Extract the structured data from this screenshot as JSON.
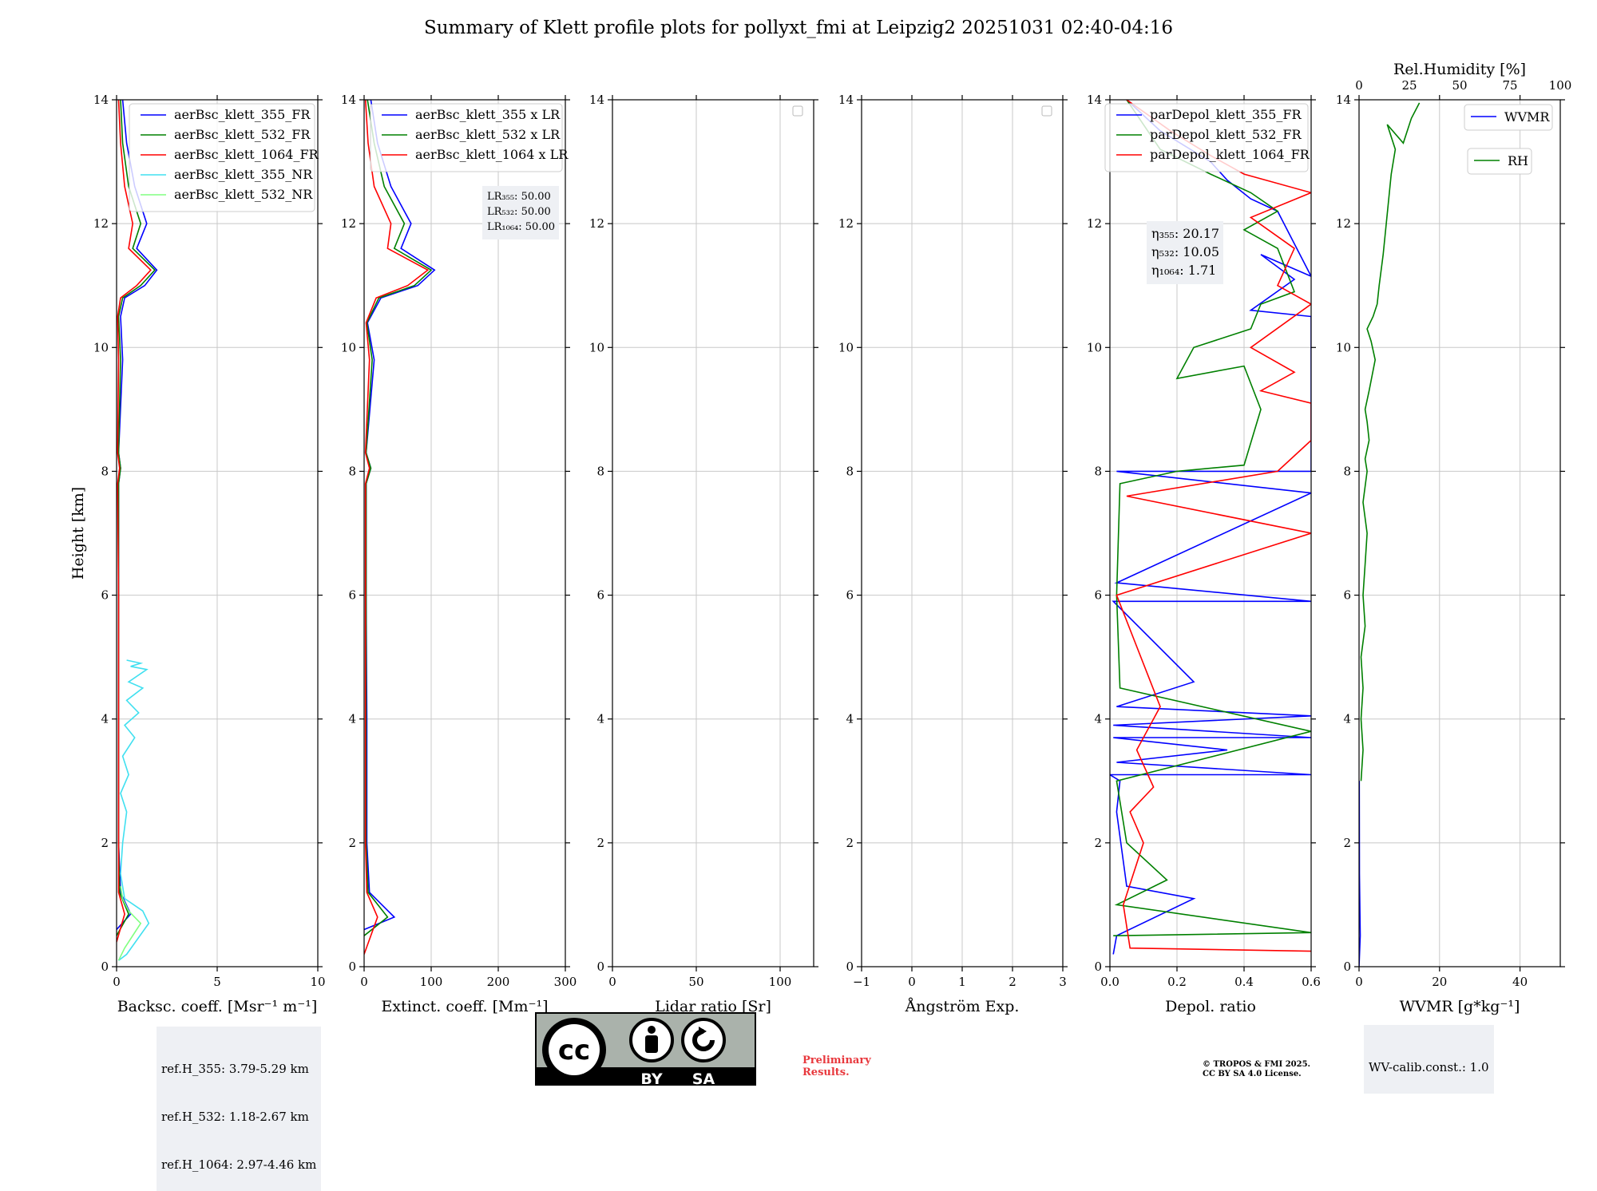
{
  "figure": {
    "title": "Summary of Klett profile plots for pollyxt_fmi at Leipzig2 20251031 02:40-04:16",
    "ref_heights": [
      "ref.H_355: 3.79-5.29 km",
      "ref.H_532: 1.18-2.67 km",
      "ref.H_1064: 2.97-4.46 km"
    ],
    "wv_calib": "WV-calib.const.: 1.0",
    "preliminary": [
      "Preliminary",
      "Results."
    ],
    "copyright": [
      "© TROPOS & FMI 2025.",
      "CC BY SA 4.0 License."
    ],
    "license_badge": [
      "cc",
      "BY",
      "SA"
    ]
  },
  "chart_data": [
    {
      "type": "line",
      "panel": "backscatter",
      "xlabel": "Backsc. coeff. [Msr⁻¹ m⁻¹]",
      "ylabel": "Height [km]",
      "xlim": [
        0,
        10
      ],
      "ylim": [
        0,
        14
      ],
      "xticks": [
        "0",
        "5",
        "10"
      ],
      "yticks": [
        "0",
        "2",
        "4",
        "6",
        "8",
        "10",
        "12",
        "14"
      ],
      "legend": "top-right",
      "series": [
        {
          "name": "aerBsc_klett_355_FR",
          "color": "#0000ff",
          "x": [
            0,
            0.7,
            0.2,
            0.1,
            0.1,
            0.1,
            0.1,
            0.2,
            0.1,
            0.3,
            0.2,
            0.4,
            1.4,
            2.0,
            1.0,
            1.5,
            0.9,
            0.5,
            0.3
          ],
          "y": [
            0.6,
            0.85,
            1.2,
            2.0,
            4.0,
            6.0,
            7.8,
            8.05,
            8.3,
            9.8,
            10.5,
            10.8,
            11.0,
            11.25,
            11.6,
            12.0,
            12.6,
            13.3,
            14.0
          ]
        },
        {
          "name": "aerBsc_klett_532_FR",
          "color": "#008000",
          "x": [
            0,
            0.6,
            0.15,
            0.1,
            0.1,
            0.1,
            0.1,
            0.2,
            0.1,
            0.2,
            0.1,
            0.3,
            1.2,
            1.9,
            0.8,
            1.2,
            0.6,
            0.3,
            0.2
          ],
          "y": [
            0.5,
            0.85,
            1.2,
            2.0,
            4.0,
            6.0,
            7.8,
            8.05,
            8.3,
            9.8,
            10.5,
            10.8,
            11.0,
            11.25,
            11.6,
            12.0,
            12.6,
            13.3,
            14.0
          ]
        },
        {
          "name": "aerBsc_klett_1064_FR",
          "color": "#ff0000",
          "x": [
            0,
            0.4,
            0.1,
            0.1,
            0.1,
            0.1,
            0.05,
            0.15,
            0.05,
            0.1,
            0.05,
            0.2,
            1.0,
            1.7,
            0.6,
            0.8,
            0.4,
            0.2,
            0.1
          ],
          "y": [
            0.4,
            0.85,
            1.2,
            2.0,
            4.0,
            6.0,
            7.8,
            8.05,
            8.3,
            9.8,
            10.5,
            10.8,
            11.0,
            11.25,
            11.6,
            12.0,
            12.6,
            13.3,
            14.0
          ]
        },
        {
          "name": "aerBsc_klett_355_NR",
          "color": "#40e0f0",
          "x": [
            0.1,
            0.5,
            1.6,
            1.3,
            0.4,
            0.2,
            0.3,
            0.5,
            0.2,
            0.6,
            0.3,
            0.9,
            0.4,
            1.1,
            0.5,
            1.3,
            0.6,
            1.5,
            0.7,
            1.2,
            0.5
          ],
          "y": [
            0.1,
            0.2,
            0.7,
            0.9,
            1.1,
            1.5,
            2.0,
            2.5,
            2.8,
            3.1,
            3.4,
            3.7,
            3.9,
            4.1,
            4.3,
            4.5,
            4.6,
            4.8,
            4.85,
            4.9,
            4.95
          ]
        },
        {
          "name": "aerBsc_klett_532_NR",
          "color": "#80ff80",
          "x": [
            0.1,
            0.4,
            1.2,
            0.6,
            0.3,
            0.2
          ],
          "y": [
            0.1,
            0.3,
            0.7,
            0.9,
            1.1,
            1.3
          ]
        }
      ]
    },
    {
      "type": "line",
      "panel": "extinction",
      "xlabel": "Extinct. coeff. [Mm⁻¹]",
      "xlim": [
        0,
        300
      ],
      "ylim": [
        0,
        14
      ],
      "xticks": [
        "0",
        "100",
        "200",
        "300"
      ],
      "yticks": [
        "0",
        "2",
        "4",
        "6",
        "8",
        "10",
        "12",
        "14"
      ],
      "legend": "top-right",
      "annotation": [
        "LR₃₅₅: 50.00",
        "LR₅₃₂: 50.00",
        "LR₁₀₆₄: 50.00"
      ],
      "series": [
        {
          "name": "aerBsc_klett_355 x LR",
          "color": "#0000ff",
          "x": [
            0,
            45,
            8,
            4,
            4,
            3,
            3,
            10,
            3,
            15,
            5,
            25,
            80,
            105,
            55,
            70,
            40,
            20,
            10
          ],
          "y": [
            0.6,
            0.8,
            1.2,
            2.0,
            4.0,
            6.0,
            7.8,
            8.05,
            8.3,
            9.8,
            10.4,
            10.8,
            11.0,
            11.25,
            11.6,
            12.0,
            12.6,
            13.3,
            14.0
          ]
        },
        {
          "name": "aerBsc_klett_532 x LR",
          "color": "#008000",
          "x": [
            0,
            35,
            6,
            3,
            3,
            3,
            3,
            10,
            3,
            12,
            4,
            22,
            75,
            100,
            45,
            60,
            30,
            15,
            5
          ],
          "y": [
            0.5,
            0.8,
            1.2,
            2.0,
            4.0,
            6.0,
            7.8,
            8.05,
            8.3,
            9.8,
            10.4,
            10.8,
            11.0,
            11.25,
            11.6,
            12.0,
            12.6,
            13.3,
            14.0
          ]
        },
        {
          "name": "aerBsc_klett_1064 x LR",
          "color": "#ff0000",
          "x": [
            0,
            20,
            4,
            2,
            2,
            2,
            2,
            8,
            2,
            8,
            3,
            18,
            65,
            95,
            35,
            40,
            15,
            6,
            2
          ],
          "y": [
            0.2,
            0.8,
            1.2,
            2.0,
            4.0,
            6.0,
            7.8,
            8.05,
            8.3,
            9.8,
            10.4,
            10.8,
            11.0,
            11.25,
            11.6,
            12.0,
            12.6,
            13.3,
            14.0
          ]
        }
      ]
    },
    {
      "type": "line",
      "panel": "lidar-ratio",
      "xlabel": "Lidar ratio [Sr]",
      "xlim": [
        0,
        120
      ],
      "ylim": [
        0,
        14
      ],
      "xticks": [
        "0",
        "50",
        "100"
      ],
      "yticks": [
        "0",
        "2",
        "4",
        "6",
        "8",
        "10",
        "12",
        "14"
      ],
      "legend": "top-right",
      "series": []
    },
    {
      "type": "line",
      "panel": "angstrom",
      "xlabel": "Ångström Exp.",
      "xlim": [
        -1,
        3
      ],
      "ylim": [
        0,
        14
      ],
      "xticks": [
        "−1",
        "0",
        "1",
        "2",
        "3"
      ],
      "yticks": [
        "0",
        "2",
        "4",
        "6",
        "8",
        "10",
        "12",
        "14"
      ],
      "legend": "top-right",
      "series": []
    },
    {
      "type": "line",
      "panel": "depol",
      "xlabel": "Depol. ratio",
      "xlim": [
        0,
        0.6
      ],
      "ylim": [
        0,
        14
      ],
      "xticks": [
        "0.0",
        "0.2",
        "0.4",
        "0.6"
      ],
      "yticks": [
        "0",
        "2",
        "4",
        "6",
        "8",
        "10",
        "12",
        "14"
      ],
      "legend": "top-right",
      "annotation": [
        "η₃₅₅: 20.17",
        "η₅₃₂: 10.05",
        "η₁₀₆₄: 1.71"
      ],
      "series": [
        {
          "name": "parDepol_klett_355_FR",
          "color": "#0000ff",
          "x": [
            0.01,
            0.02,
            0.25,
            0.05,
            0.02,
            0.03,
            0.0,
            0.6,
            0.02,
            0.35,
            0.01,
            0.6,
            0.01,
            0.6,
            0.02,
            0.25,
            0.01,
            0.6,
            0.02,
            0.6,
            0.02,
            0.6,
            0.6,
            0.6,
            0.6,
            0.42,
            0.55,
            0.45,
            0.6,
            0.5,
            0.42,
            0.35,
            0.3,
            0.15,
            0.05
          ],
          "y": [
            0.2,
            0.5,
            1.1,
            1.3,
            2.5,
            3.0,
            3.1,
            3.1,
            3.3,
            3.5,
            3.7,
            3.7,
            3.9,
            4.05,
            4.2,
            4.6,
            5.9,
            5.9,
            6.2,
            7.65,
            8.0,
            8.0,
            9.9,
            10.35,
            10.5,
            10.6,
            11.1,
            11.5,
            11.15,
            12.2,
            12.4,
            12.7,
            13.0,
            13.5,
            14.0
          ]
        },
        {
          "name": "parDepol_klett_532_FR",
          "color": "#008000",
          "x": [
            0.01,
            0.6,
            0.02,
            0.17,
            0.05,
            0.02,
            0.6,
            0.03,
            0.02,
            0.03,
            0.2,
            0.4,
            0.45,
            0.4,
            0.2,
            0.25,
            0.42,
            0.45,
            0.55,
            0.5,
            0.4,
            0.5,
            0.42,
            0.3,
            0.15,
            0.05
          ],
          "y": [
            0.5,
            0.55,
            1.0,
            1.4,
            2.0,
            3.0,
            3.8,
            4.5,
            6.0,
            7.8,
            8.0,
            8.1,
            9.0,
            9.7,
            9.5,
            10.0,
            10.3,
            10.7,
            10.9,
            11.6,
            11.9,
            12.2,
            12.5,
            12.8,
            13.2,
            14.0
          ]
        },
        {
          "name": "parDepol_klett_1064_FR",
          "color": "#ff0000",
          "x": [
            0.6,
            0.06,
            0.04,
            0.1,
            0.06,
            0.13,
            0.08,
            0.15,
            0.02,
            0.6,
            0.05,
            0.5,
            0.6,
            0.6,
            0.6,
            0.45,
            0.55,
            0.42,
            0.6,
            0.5,
            0.55,
            0.42,
            0.6,
            0.4,
            0.3,
            0.18,
            0.05
          ],
          "y": [
            0.25,
            0.3,
            1.0,
            2.0,
            2.5,
            2.9,
            3.5,
            4.2,
            6.0,
            7.0,
            7.6,
            8.0,
            8.5,
            8.7,
            9.1,
            9.3,
            9.6,
            10.0,
            10.7,
            11.0,
            11.6,
            12.1,
            12.5,
            12.8,
            13.1,
            13.5,
            14.0
          ]
        }
      ]
    },
    {
      "type": "line",
      "panel": "wvmr",
      "xlabel": "WVMR [g*kg⁻¹]",
      "xlabel2": "Rel.Humidity [%]",
      "xlim": [
        0,
        50
      ],
      "ylim": [
        0,
        14
      ],
      "xlim2": [
        0,
        100
      ],
      "xticks": [
        "0",
        "20",
        "40"
      ],
      "xticks2": [
        "0",
        "25",
        "50",
        "75",
        "100"
      ],
      "yticks": [
        "0",
        "2",
        "4",
        "6",
        "8",
        "10",
        "12",
        "14"
      ],
      "legend_wvmr": "WVMR",
      "legend_rh": "RH",
      "series": [
        {
          "name": "WVMR",
          "color": "#0000ff",
          "x": [
            0,
            0.3,
            0.1,
            0.05
          ],
          "y": [
            0,
            0.5,
            1.5,
            3.0
          ]
        },
        {
          "name": "RH",
          "color": "#008000",
          "x": [
            1,
            2,
            1,
            2,
            1,
            3,
            2,
            3,
            4,
            2,
            4,
            3,
            5,
            4,
            3,
            5,
            8,
            6,
            4,
            7,
            9,
            10,
            12,
            16,
            18,
            14,
            22,
            26,
            30
          ],
          "y": [
            3.0,
            3.5,
            4.0,
            4.5,
            5.0,
            5.5,
            6.0,
            6.5,
            7.0,
            7.5,
            8.0,
            8.2,
            8.5,
            8.8,
            9.0,
            9.3,
            9.8,
            10.1,
            10.3,
            10.5,
            10.7,
            11.0,
            11.5,
            12.8,
            13.2,
            13.6,
            13.3,
            13.7,
            13.95
          ]
        }
      ]
    }
  ]
}
